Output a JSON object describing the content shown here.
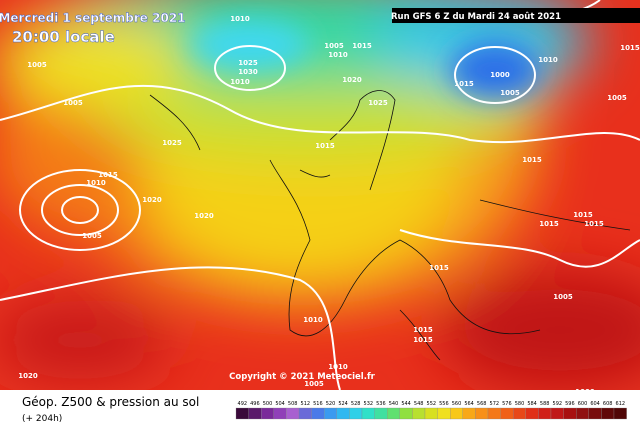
{
  "header": {
    "date": "Mercredi 1 septembre 2021",
    "time": "20:00 locale",
    "run": "Run GFS 6 Z du Mardi 24 août 2021"
  },
  "copyright": "Copyright © 2021 Meteociel.fr",
  "footer": {
    "title": "Géop. Z500 & pression au sol",
    "lead": "(+ 204h)"
  },
  "legend": {
    "ticks": [
      "492",
      "496",
      "500",
      "504",
      "508",
      "512",
      "516",
      "520",
      "524",
      "528",
      "532",
      "536",
      "540",
      "544",
      "548",
      "552",
      "556",
      "560",
      "564",
      "568",
      "572",
      "576",
      "580",
      "584",
      "588",
      "592",
      "596",
      "600",
      "604",
      "608",
      "612"
    ]
  },
  "isobars": [
    "1010",
    "1005",
    "1025",
    "1030",
    "1010",
    "1005",
    "1010",
    "1015",
    "1020",
    "1025",
    "1015",
    "1025",
    "1015",
    "1010",
    "1020",
    "1020",
    "1005",
    "1000",
    "1005",
    "1015",
    "1010",
    "1015",
    "1005",
    "1015",
    "1015",
    "1015",
    "1015",
    "1015",
    "1005",
    "1010",
    "1010",
    "1015",
    "1015",
    "1005",
    "1020",
    "1000",
    "1005"
  ]
}
